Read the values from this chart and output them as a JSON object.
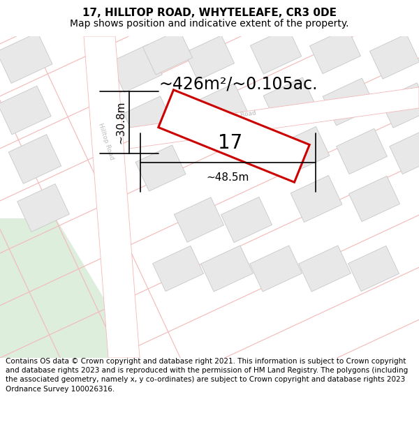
{
  "title_line1": "17, HILLTOP ROAD, WHYTELEAFE, CR3 0DE",
  "title_line2": "Map shows position and indicative extent of the property.",
  "area_label": "~426m²/~0.105ac.",
  "dim_width": "~48.5m",
  "dim_height": "~30.8m",
  "property_number": "17",
  "footer_text": "Contains OS data © Crown copyright and database right 2021. This information is subject to Crown copyright and database rights 2023 and is reproduced with the permission of HM Land Registry. The polygons (including the associated geometry, namely x, y co-ordinates) are subject to Crown copyright and database rights 2023 Ordnance Survey 100026316.",
  "map_bg": "#ffffff",
  "road_line_color": "#f4b8b8",
  "building_face": "#e8e8e8",
  "building_edge": "#c8c8c8",
  "green_color": "#ddeedd",
  "property_fill": "#ffffff",
  "property_edge": "#cc0000",
  "road_band_color": "#ffffff",
  "road_text_color": "#bbbbbb",
  "dim_color": "#000000",
  "text_color": "#000000",
  "title_fontsize": 11,
  "subtitle_fontsize": 10,
  "area_fontsize": 17,
  "dim_fontsize": 11,
  "property_num_fontsize": 20,
  "footer_fontsize": 7.5
}
